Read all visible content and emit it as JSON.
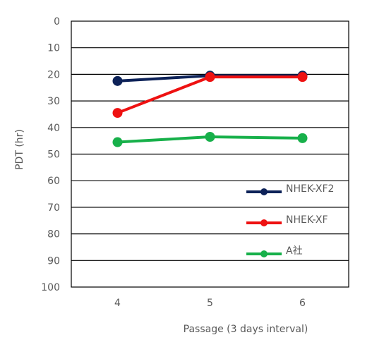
{
  "chart_data": {
    "type": "line",
    "title": "",
    "xlabel": "Passage (3 days interval)",
    "ylabel": "PDT (hr)",
    "categories": [
      "4",
      "5",
      "6"
    ],
    "y_ticks": [
      "0",
      "10",
      "20",
      "30",
      "40",
      "50",
      "60",
      "70",
      "80",
      "90",
      "100"
    ],
    "ylim": [
      0,
      100
    ],
    "y_axis_inverted": true,
    "grid": true,
    "legend_position": "right",
    "series": [
      {
        "name": "NHEK-XF2",
        "values": [
          22.5,
          20.5,
          20.5
        ],
        "color": "#0d2258"
      },
      {
        "name": "NHEK-XF",
        "values": [
          34.5,
          21.0,
          21.0
        ],
        "color": "#ee1111"
      },
      {
        "name": "A社",
        "values": [
          45.5,
          43.5,
          44.0
        ],
        "color": "#17b04a"
      }
    ]
  }
}
